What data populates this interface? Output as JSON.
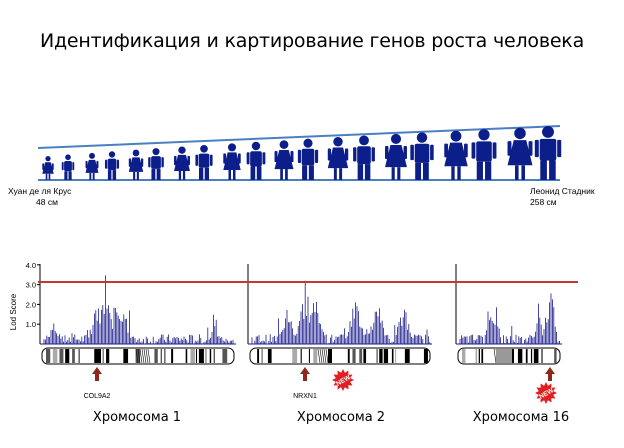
{
  "title": "Идентификация и картирование генов роста человека",
  "height_scale": {
    "left_name": "Хуан де ля Крус",
    "left_height": "48 см",
    "right_name": "Леонид Стадник",
    "right_height": "258 см",
    "figure_color": "#0b1e8a",
    "line_color": "#4a7fc1"
  },
  "lod_plot": {
    "ylabel": "Lod Score",
    "yticks": [
      "4.0",
      "3.0",
      "2.0",
      "1.0"
    ],
    "threshold": 3.1,
    "threshold_color": "#c0392b",
    "bar_color": "#1a1a8c",
    "panels": [
      {
        "chromosome": "Хромосома 1",
        "gene": "COL9A2",
        "new_badge": false
      },
      {
        "chromosome": "Хромосома 2",
        "gene": "NRXN1",
        "new_badge": true,
        "badge_text": "NEW"
      },
      {
        "chromosome": "Хромосома 16",
        "gene": "",
        "new_badge": true,
        "badge_text": "NEW"
      }
    ]
  }
}
